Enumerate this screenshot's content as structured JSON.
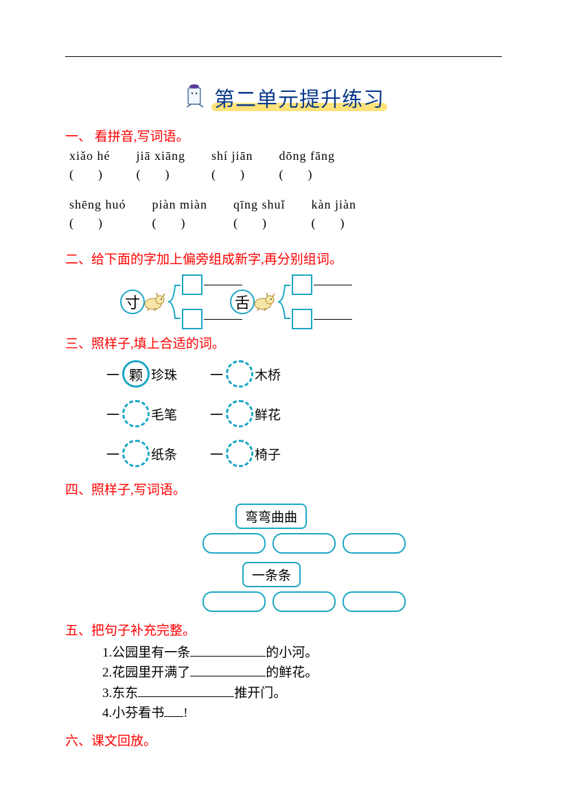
{
  "title": "第二单元提升练习",
  "colors": {
    "heading": "#ff0000",
    "title_text": "#0a3a8a",
    "title_bar": "#ffe27a",
    "shape_border": "#1aa6c4",
    "rule": "#000000"
  },
  "q1": {
    "heading": "一、 看拼音,写词语。",
    "row1": [
      {
        "py": "xiǎo hé",
        "blank": "(　　)"
      },
      {
        "py": "jiā xiāng",
        "blank": "(　　)"
      },
      {
        "py": "shí jiān",
        "blank": "(　　)"
      },
      {
        "py": "dōng fāng",
        "blank": "(　　)"
      }
    ],
    "row2": [
      {
        "py": "shēng huó",
        "blank": "(　　)"
      },
      {
        "py": "piàn miàn",
        "blank": "(　　)"
      },
      {
        "py": "qīng shuǐ",
        "blank": "(　　)"
      },
      {
        "py": "kàn jiàn",
        "blank": "(　　)"
      }
    ]
  },
  "q2": {
    "heading": "二、给下面的字加上偏旁组成新字,再分别组词。",
    "chars": [
      "寸",
      "舌"
    ]
  },
  "q3": {
    "heading": "三、照样子,填上合适的词。",
    "example_fill": "颗",
    "rows": [
      [
        {
          "fill": "颗",
          "word": "珍珠",
          "dashed": false
        },
        {
          "fill": "",
          "word": "木桥",
          "dashed": true
        }
      ],
      [
        {
          "fill": "",
          "word": "毛笔",
          "dashed": true
        },
        {
          "fill": "",
          "word": "鲜花",
          "dashed": true
        }
      ],
      [
        {
          "fill": "",
          "word": "纸条",
          "dashed": true
        },
        {
          "fill": "",
          "word": "椅子",
          "dashed": true
        }
      ]
    ]
  },
  "q4": {
    "heading": "四、照样子,写词语。",
    "examples": [
      "弯弯曲曲",
      "一条条"
    ]
  },
  "q5": {
    "heading": "五、把句子补充完整。",
    "lines": [
      {
        "n": "1.",
        "pre": "公园里有一条",
        "post": "的小河。",
        "blank_w": 110
      },
      {
        "n": "2.",
        "pre": "花园里开满了",
        "post": "的鲜花。",
        "blank_w": 110
      },
      {
        "n": "3.",
        "pre": "东东",
        "post": "推开门。",
        "blank_w": 140
      },
      {
        "n": "4.",
        "pre": "小芬看书 ",
        "post": "!",
        "blank_w": 28
      }
    ]
  },
  "q6": {
    "heading": "六、课文回放。"
  }
}
